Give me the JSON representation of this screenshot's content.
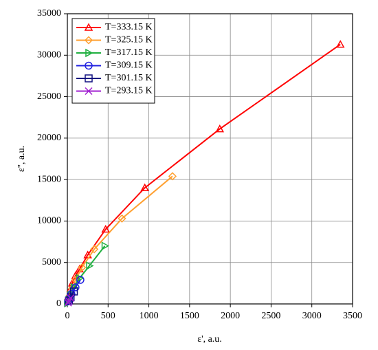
{
  "chart_data": {
    "type": "line",
    "x_label": "ε', a.u.",
    "y_label": "ε'', a.u.",
    "xlim": [
      0,
      3500
    ],
    "xticks": [
      0,
      500,
      1000,
      1500,
      2000,
      2500,
      3000,
      3500
    ],
    "ylim": [
      0,
      35000
    ],
    "yticks": [
      0,
      5000,
      10000,
      15000,
      20000,
      25000,
      30000,
      35000
    ],
    "grid": true,
    "legend": "upper left",
    "series": [
      {
        "name": "T=333.15 K",
        "color": "#ff0000",
        "marker": "triangle-up",
        "x": [
          10,
          20,
          40,
          60,
          100,
          150,
          250,
          470,
          950,
          1870,
          3350
        ],
        "values": [
          500,
          1000,
          1800,
          2500,
          3400,
          4200,
          5900,
          9000,
          14000,
          21100,
          31300
        ]
      },
      {
        "name": "T=325.15 K",
        "color": "#ffa030",
        "marker": "diamond",
        "x": [
          15,
          30,
          60,
          100,
          180,
          330,
          670,
          1290
        ],
        "values": [
          500,
          1000,
          1900,
          2900,
          4400,
          6600,
          10300,
          15400
        ]
      },
      {
        "name": "T=317.15 K",
        "color": "#20b040",
        "marker": "triangle-right",
        "x": [
          0,
          20,
          40,
          80,
          150,
          270,
          460
        ],
        "values": [
          100,
          500,
          1100,
          2000,
          3100,
          4600,
          7000
        ]
      },
      {
        "name": "T=309.15 K",
        "color": "#2020e0",
        "marker": "circle",
        "x": [
          10,
          25,
          50,
          100,
          160
        ],
        "values": [
          300,
          600,
          1200,
          2000,
          2900
        ]
      },
      {
        "name": "T=301.15 K",
        "color": "#101080",
        "marker": "square",
        "x": [
          20,
          40,
          80
        ],
        "values": [
          400,
          800,
          1500
        ]
      },
      {
        "name": "T=293.15 K",
        "color": "#a020d0",
        "marker": "x",
        "x": [
          10,
          20,
          40
        ],
        "values": [
          150,
          350,
          700
        ]
      }
    ]
  }
}
